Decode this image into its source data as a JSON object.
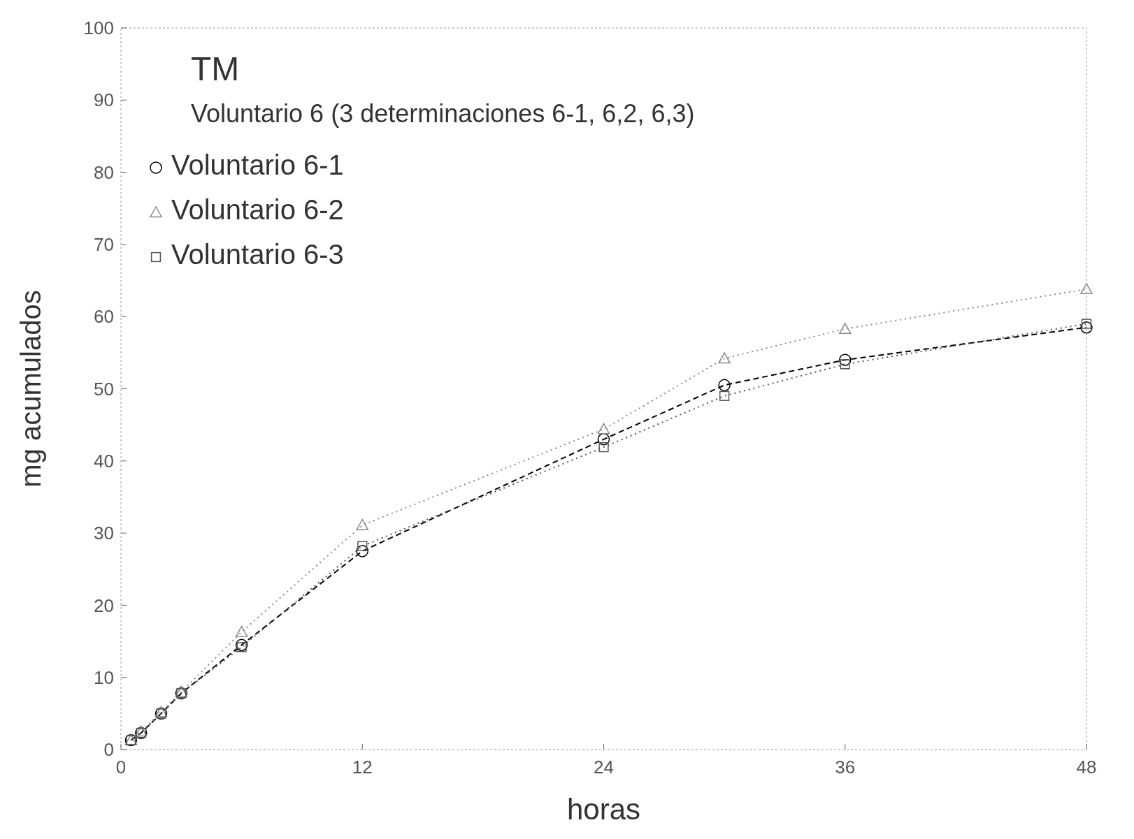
{
  "chart_data": {
    "type": "line",
    "title": "TM",
    "subtitle": "Voluntario 6 (3 determinaciones 6-1, 6,2, 6,3)",
    "xlabel": "horas",
    "ylabel": "mg acumulados",
    "x": [
      0.5,
      1,
      2,
      3,
      6,
      12,
      24,
      30,
      36,
      48
    ],
    "series": [
      {
        "name": "Voluntario 6-1",
        "color": "#000000",
        "marker": "circle",
        "line_style": "dashed",
        "values": [
          1.3,
          2.3,
          5,
          7.8,
          14.5,
          27.5,
          43,
          50.5,
          54,
          58.5
        ]
      },
      {
        "name": "Voluntario 6-2",
        "color": "#8a8a8a",
        "marker": "triangle",
        "line_style": "dotted",
        "values": [
          1.3,
          2.5,
          5.2,
          8,
          16.3,
          31.1,
          44.4,
          54.2,
          58.3,
          63.8
        ]
      },
      {
        "name": "Voluntario 6-3",
        "color": "#555555",
        "marker": "square",
        "line_style": "dotted",
        "values": [
          1.3,
          2.3,
          5,
          7.8,
          14.2,
          28.2,
          41.9,
          49,
          53.4,
          59
        ]
      }
    ],
    "xlim": [
      0,
      48
    ],
    "xticks": [
      0,
      12,
      24,
      36,
      48
    ],
    "ylim": [
      0,
      100
    ],
    "yticks": [
      0,
      10,
      20,
      30,
      40,
      50,
      60,
      70,
      80,
      90,
      100
    ],
    "grid": false,
    "legend": "top left"
  }
}
